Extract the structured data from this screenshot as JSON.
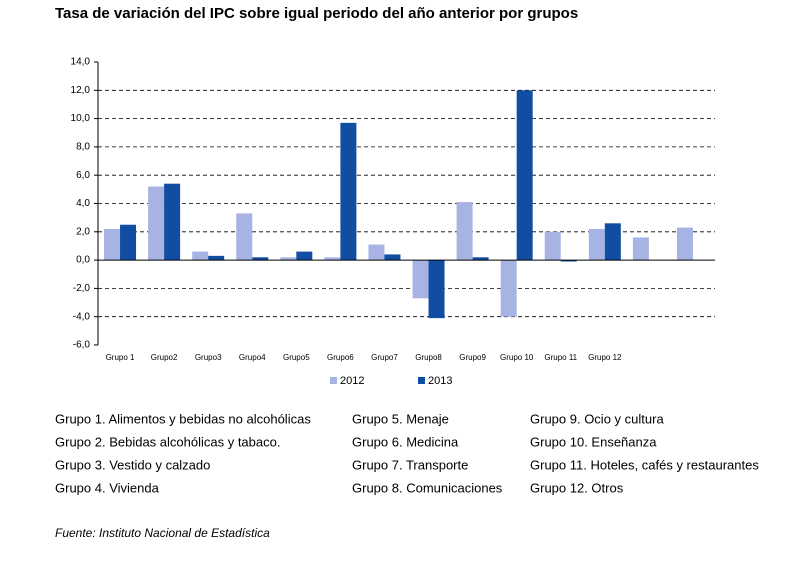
{
  "chart_data": {
    "type": "bar",
    "title": "Tasa de variación del IPC sobre igual periodo del año anterior por grupos",
    "categories": [
      "Grupo 1",
      "Grupo2",
      "Grupo3",
      "Grupo4",
      "Grupo5",
      "Grupo6",
      "Grupo7",
      "Grupo8",
      "Grupo9",
      "Grupo 10",
      "Grupo 11",
      "Grupo 12",
      null,
      null
    ],
    "series": [
      {
        "name": "2012",
        "color": "#a7b3e3",
        "values": [
          2.2,
          5.2,
          0.6,
          3.3,
          0.2,
          0.2,
          1.1,
          -2.7,
          4.1,
          -4.0,
          2.0,
          2.2,
          1.6,
          2.3
        ]
      },
      {
        "name": "2013",
        "color": "#114ea3",
        "values": [
          2.5,
          5.4,
          0.3,
          0.2,
          0.6,
          9.7,
          0.4,
          -4.1,
          0.2,
          12.0,
          -0.1,
          2.6,
          null,
          null
        ]
      }
    ],
    "ylim": [
      -6,
      14
    ],
    "yticks": [
      {
        "value": 14,
        "label": "14,0"
      },
      {
        "value": 12,
        "label": "12,0"
      },
      {
        "value": 10,
        "label": "10,0"
      },
      {
        "value": 8,
        "label": "8,0"
      },
      {
        "value": 6,
        "label": "6,0"
      },
      {
        "value": 4,
        "label": "4,0"
      },
      {
        "value": 2,
        "label": "2,0"
      },
      {
        "value": 0,
        "label": "0,0"
      },
      {
        "value": -2,
        "label": "-2,0"
      },
      {
        "value": -4,
        "label": "-4,0"
      },
      {
        "value": -6,
        "label": "-6,0"
      }
    ],
    "grid": true,
    "legend": "bottom",
    "notes": [
      [
        "Grupo 1. Alimentos y bebidas no alcohólicas",
        "Grupo 2. Bebidas alcohólicas y  tabaco.",
        "Grupo 3. Vestido y calzado",
        "Grupo 4. Vivienda"
      ],
      [
        "Grupo 5. Menaje",
        "Grupo 6. Medicina",
        "Grupo 7. Transporte",
        "Grupo 8. Comunicaciones"
      ],
      [
        "Grupo 9. Ocio y cultura",
        "Grupo 10. Enseñanza",
        "Grupo 11. Hoteles, cafés y restaurantes",
        "Grupo 12. Otros"
      ]
    ],
    "source": "Fuente: Instituto Nacional de Estadística"
  }
}
